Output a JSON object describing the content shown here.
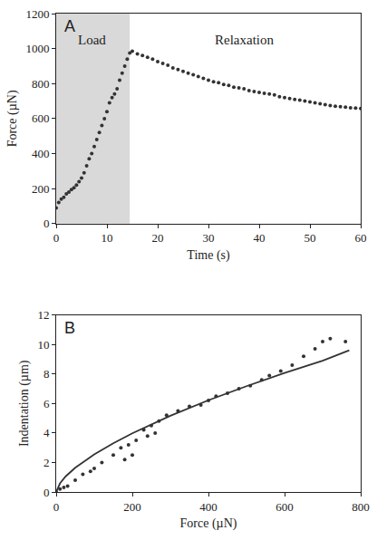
{
  "chart_data": [
    {
      "type": "scatter",
      "panel": "A",
      "x_label": "Time (s)",
      "y_label": "Force (µN)",
      "xlim": [
        0,
        60
      ],
      "xticks": [
        0,
        10,
        20,
        30,
        40,
        50,
        60
      ],
      "ylim": [
        0,
        1200
      ],
      "yticks": [
        0,
        200,
        400,
        600,
        800,
        1000,
        1200
      ],
      "grid": false,
      "shaded": {
        "x": [
          0,
          14.5
        ],
        "color": "#d9d9d9"
      },
      "annotations": [
        {
          "text": "Load",
          "x": 7,
          "y": 1050
        },
        {
          "text": "Relaxation",
          "x": 37,
          "y": 1050
        }
      ],
      "series": [
        {
          "type": "scatter",
          "marker": "circle",
          "color": "#333333",
          "x": [
            0,
            0.5,
            1,
            1.5,
            2,
            2.5,
            3,
            3.5,
            4,
            4.5,
            5,
            5.5,
            6,
            6.5,
            7,
            7.5,
            8,
            8.5,
            9,
            9.5,
            10,
            10.5,
            11,
            11.5,
            12,
            12.5,
            13,
            13.5,
            14,
            14.5,
            15,
            16,
            17,
            18,
            19,
            20,
            21,
            22,
            23,
            24,
            25,
            26,
            27,
            28,
            29,
            30,
            31,
            32,
            33,
            34,
            35,
            36,
            37,
            38,
            39,
            40,
            41,
            42,
            43,
            44,
            45,
            46,
            47,
            48,
            49,
            50,
            51,
            52,
            53,
            54,
            55,
            56,
            57,
            58,
            59,
            60
          ],
          "values": [
            90,
            120,
            140,
            150,
            170,
            180,
            195,
            205,
            220,
            240,
            260,
            290,
            330,
            370,
            400,
            440,
            480,
            520,
            560,
            600,
            640,
            690,
            720,
            740,
            770,
            820,
            860,
            900,
            940,
            975,
            985,
            970,
            960,
            950,
            940,
            925,
            915,
            905,
            890,
            880,
            870,
            860,
            850,
            840,
            830,
            820,
            810,
            805,
            795,
            790,
            780,
            775,
            770,
            760,
            755,
            750,
            745,
            740,
            735,
            725,
            720,
            715,
            710,
            705,
            700,
            695,
            690,
            685,
            680,
            675,
            670,
            668,
            665,
            662,
            660,
            658
          ]
        }
      ]
    },
    {
      "type": "scatter",
      "panel": "B",
      "x_label": "Force (µN)",
      "y_label": "Indentation (µm)",
      "xlim": [
        0,
        800
      ],
      "xticks": [
        0,
        200,
        400,
        600,
        800
      ],
      "ylim": [
        0,
        12
      ],
      "yticks": [
        0,
        2,
        4,
        6,
        8,
        10,
        12
      ],
      "grid": false,
      "series": [
        {
          "type": "scatter",
          "marker": "circle",
          "color": "#333333",
          "x": [
            0,
            10,
            20,
            30,
            50,
            70,
            90,
            100,
            120,
            150,
            170,
            180,
            190,
            200,
            210,
            230,
            240,
            250,
            260,
            270,
            290,
            320,
            350,
            380,
            400,
            420,
            450,
            480,
            510,
            540,
            560,
            590,
            620,
            650,
            680,
            700,
            720,
            760
          ],
          "values": [
            0,
            0.2,
            0.3,
            0.4,
            0.8,
            1.2,
            1.4,
            1.6,
            2.0,
            2.5,
            3.0,
            2.2,
            3.2,
            2.5,
            3.5,
            4.2,
            3.8,
            4.5,
            4.0,
            4.8,
            5.2,
            5.5,
            5.8,
            5.9,
            6.2,
            6.5,
            6.7,
            7.0,
            7.2,
            7.6,
            7.9,
            8.2,
            8.6,
            9.2,
            9.7,
            10.2,
            10.4,
            10.2
          ]
        },
        {
          "type": "line",
          "line_style": "solid",
          "color": "#333333",
          "x": [
            0,
            10,
            25,
            50,
            100,
            150,
            200,
            300,
            400,
            500,
            600,
            700,
            770
          ],
          "values": [
            0,
            0.58,
            1.06,
            1.64,
            2.55,
            3.3,
            3.98,
            5.17,
            6.22,
            7.17,
            8.07,
            8.9,
            9.6
          ]
        }
      ]
    }
  ]
}
